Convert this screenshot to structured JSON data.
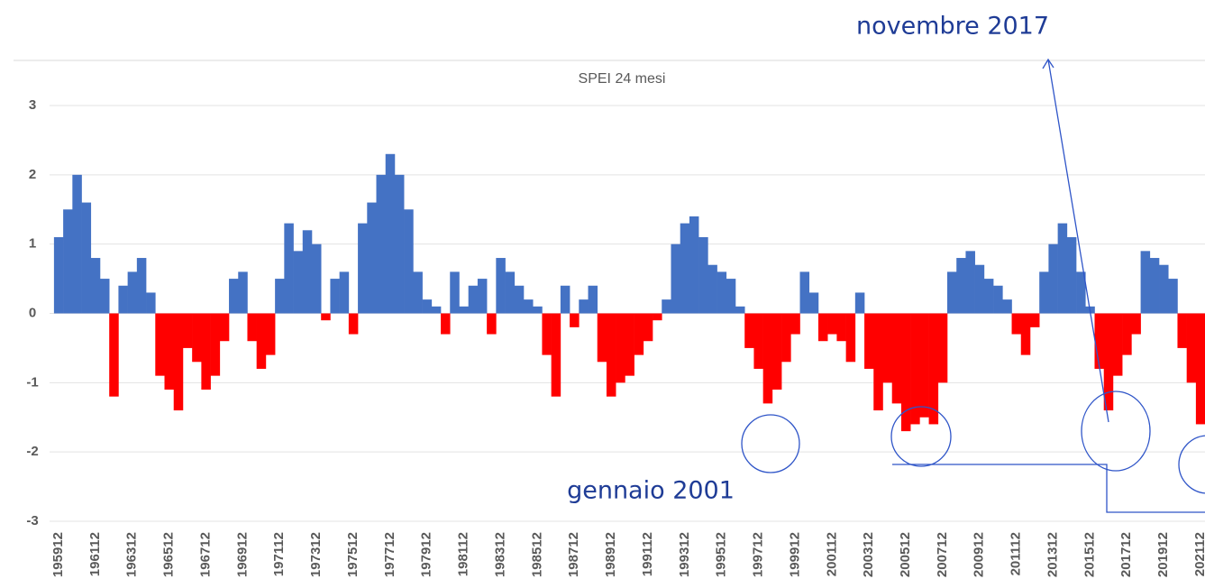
{
  "chart_data": {
    "type": "bar",
    "title": "SPEI 24 mesi",
    "categories": [
      "195912",
      null,
      null,
      null,
      "196112",
      null,
      null,
      null,
      "196312",
      null,
      null,
      null,
      "196512",
      null,
      null,
      null,
      "196712",
      null,
      null,
      null,
      "196912",
      null,
      null,
      null,
      "197112",
      null,
      null,
      null,
      "197312",
      null,
      null,
      null,
      "197512",
      null,
      null,
      null,
      "197712",
      null,
      null,
      null,
      "197912",
      null,
      null,
      null,
      "198112",
      null,
      null,
      null,
      "198312",
      null,
      null,
      null,
      "198512",
      null,
      null,
      null,
      "198712",
      null,
      null,
      null,
      "198912",
      null,
      null,
      null,
      "199112",
      null,
      null,
      null,
      "199312",
      null,
      null,
      null,
      "199512",
      null,
      null,
      null,
      "199712",
      null,
      null,
      null,
      "199912",
      null,
      null,
      null,
      "200112",
      null,
      null,
      null,
      "200312",
      null,
      null,
      null,
      "200512",
      null,
      null,
      null,
      "200712",
      null,
      null,
      null,
      "200912",
      null,
      null,
      null,
      "201112",
      null,
      null,
      null,
      "201312",
      null,
      null,
      null,
      "201512",
      null,
      null,
      null,
      "201712",
      null,
      null,
      null,
      "201912",
      null,
      null,
      null,
      "202112"
    ],
    "values": [
      1.1,
      1.5,
      2.0,
      1.6,
      0.8,
      0.5,
      -1.2,
      0.4,
      0.6,
      0.8,
      0.3,
      -0.9,
      -1.1,
      -1.4,
      -0.5,
      -0.7,
      -1.1,
      -0.9,
      -0.4,
      0.5,
      0.6,
      -0.4,
      -0.8,
      -0.6,
      0.5,
      1.3,
      0.9,
      1.2,
      1.0,
      -0.1,
      0.5,
      0.6,
      -0.3,
      1.3,
      1.6,
      2.0,
      2.3,
      2.0,
      1.5,
      0.6,
      0.2,
      0.1,
      -0.3,
      0.6,
      0.1,
      0.4,
      0.5,
      -0.3,
      0.8,
      0.6,
      0.4,
      0.2,
      0.1,
      -0.6,
      -1.2,
      0.4,
      -0.2,
      0.2,
      0.4,
      -0.7,
      -1.2,
      -1.0,
      -0.9,
      -0.6,
      -0.4,
      -0.1,
      0.2,
      1.0,
      1.3,
      1.4,
      1.1,
      0.7,
      0.6,
      0.5,
      0.1,
      -0.5,
      -0.8,
      -1.3,
      -1.1,
      -0.7,
      -0.3,
      0.6,
      0.3,
      -0.4,
      -0.3,
      -0.4,
      -0.7,
      0.3,
      -0.8,
      -1.4,
      -1.0,
      -1.3,
      -1.7,
      -1.6,
      -1.5,
      -1.6,
      -1.0,
      0.6,
      0.8,
      0.9,
      0.7,
      0.5,
      0.4,
      0.2,
      -0.3,
      -0.6,
      -0.2,
      0.6,
      1.0,
      1.3,
      1.1,
      0.6,
      0.1,
      -0.8,
      -1.4,
      -0.9,
      -0.6,
      -0.3,
      0.9,
      0.8,
      0.7,
      0.5,
      -0.5,
      -1.0,
      -1.6
    ],
    "positive_color": "#4472c4",
    "negative_color": "#ff0000",
    "ylim": [
      -3,
      3
    ],
    "yticks": [
      -3,
      -2,
      -1,
      0,
      1,
      2,
      3
    ],
    "grid": true,
    "annotations": [
      "novembre 2017",
      "gennaio 2001"
    ]
  }
}
